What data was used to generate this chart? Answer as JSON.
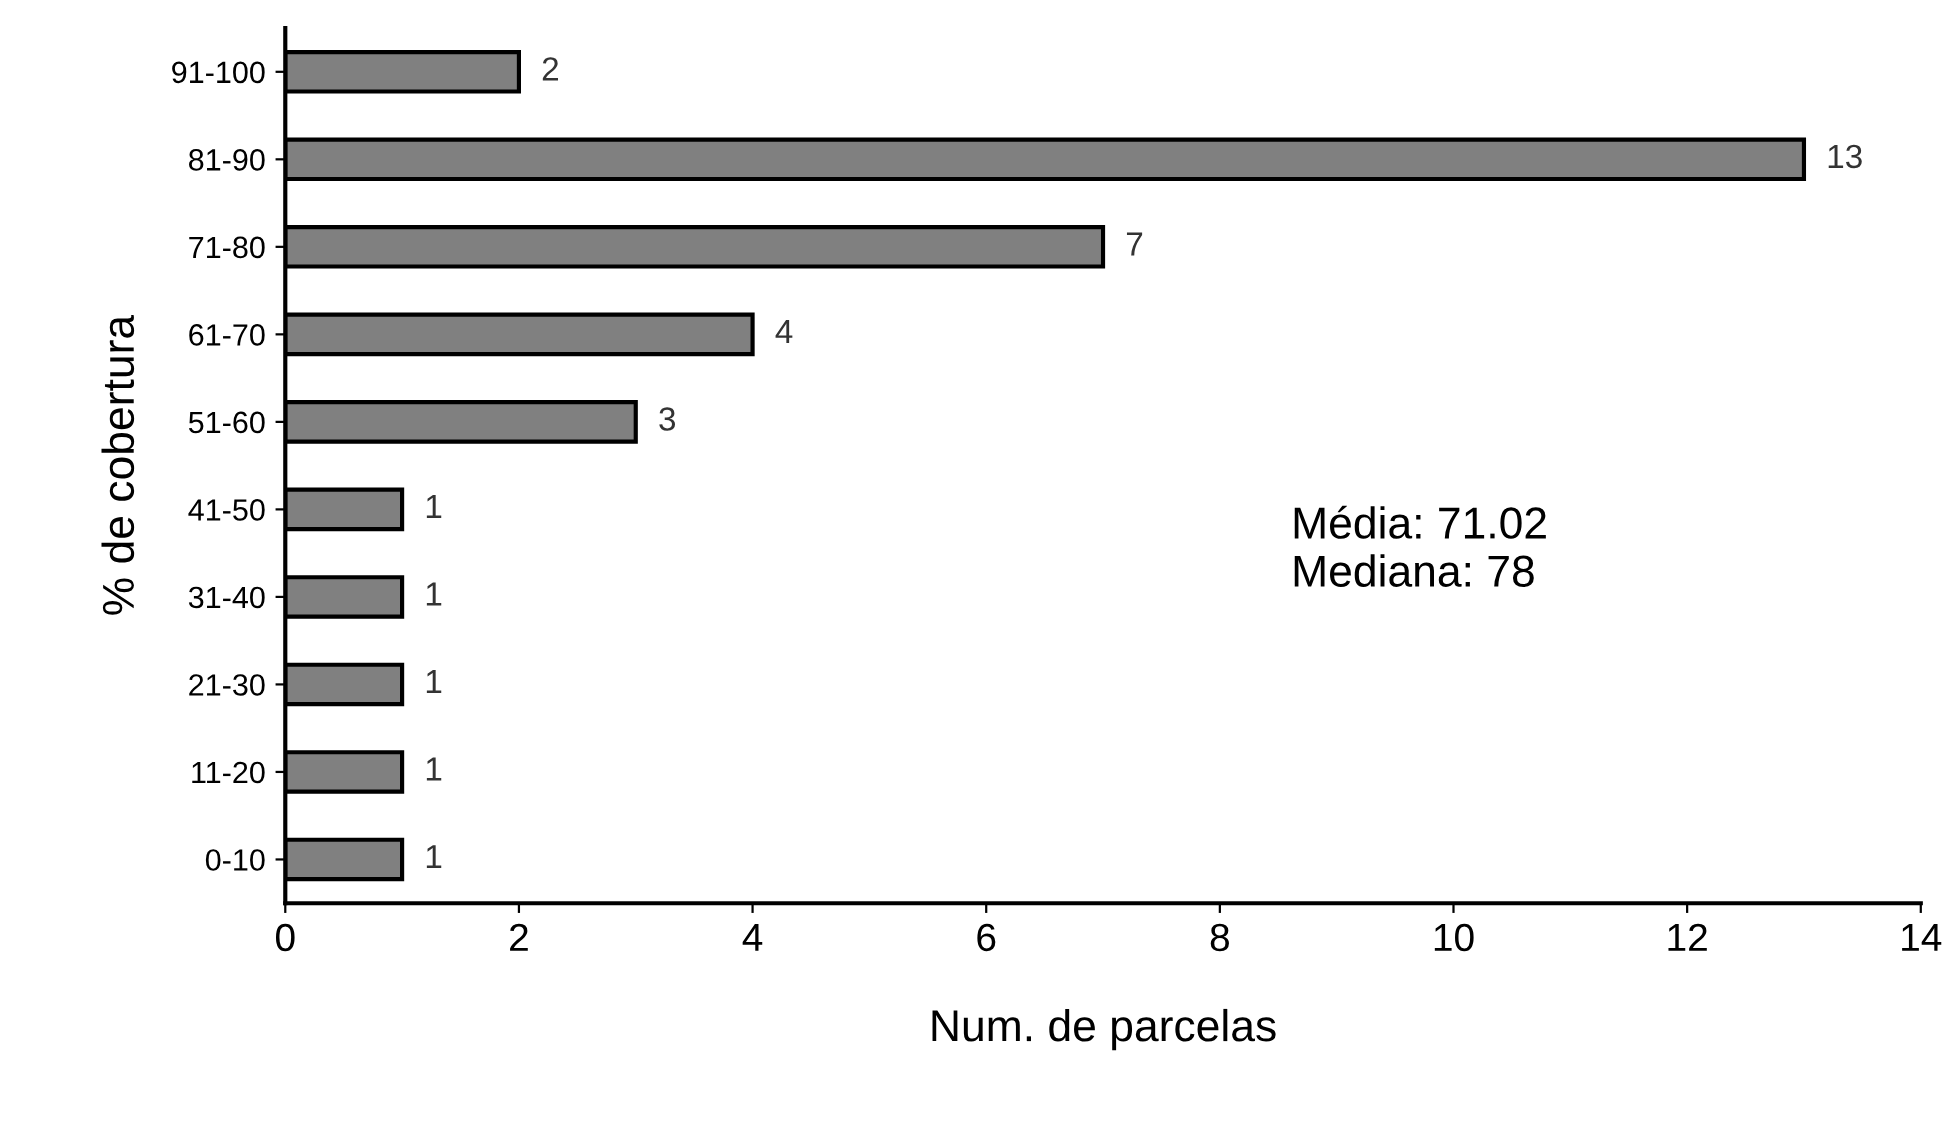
{
  "chart_data": {
    "type": "bar",
    "orientation": "horizontal",
    "categories": [
      "91-100",
      "81-90",
      "71-80",
      "61-70",
      "51-60",
      "41-50",
      "31-40",
      "21-30",
      "11-20",
      "0-10"
    ],
    "values": [
      2,
      13,
      7,
      4,
      3,
      1,
      1,
      1,
      1,
      1
    ],
    "color": "#808080",
    "xlim": [
      0,
      14
    ],
    "xticks": [
      0,
      2,
      4,
      6,
      8,
      10,
      12,
      14
    ],
    "xlabel": "Num. de parcelas",
    "ylabel": "% de cobertura",
    "data_labels": true,
    "grid": false,
    "legend": false,
    "annotations": [
      "Média: 71.02",
      "Mediana: 78"
    ]
  }
}
